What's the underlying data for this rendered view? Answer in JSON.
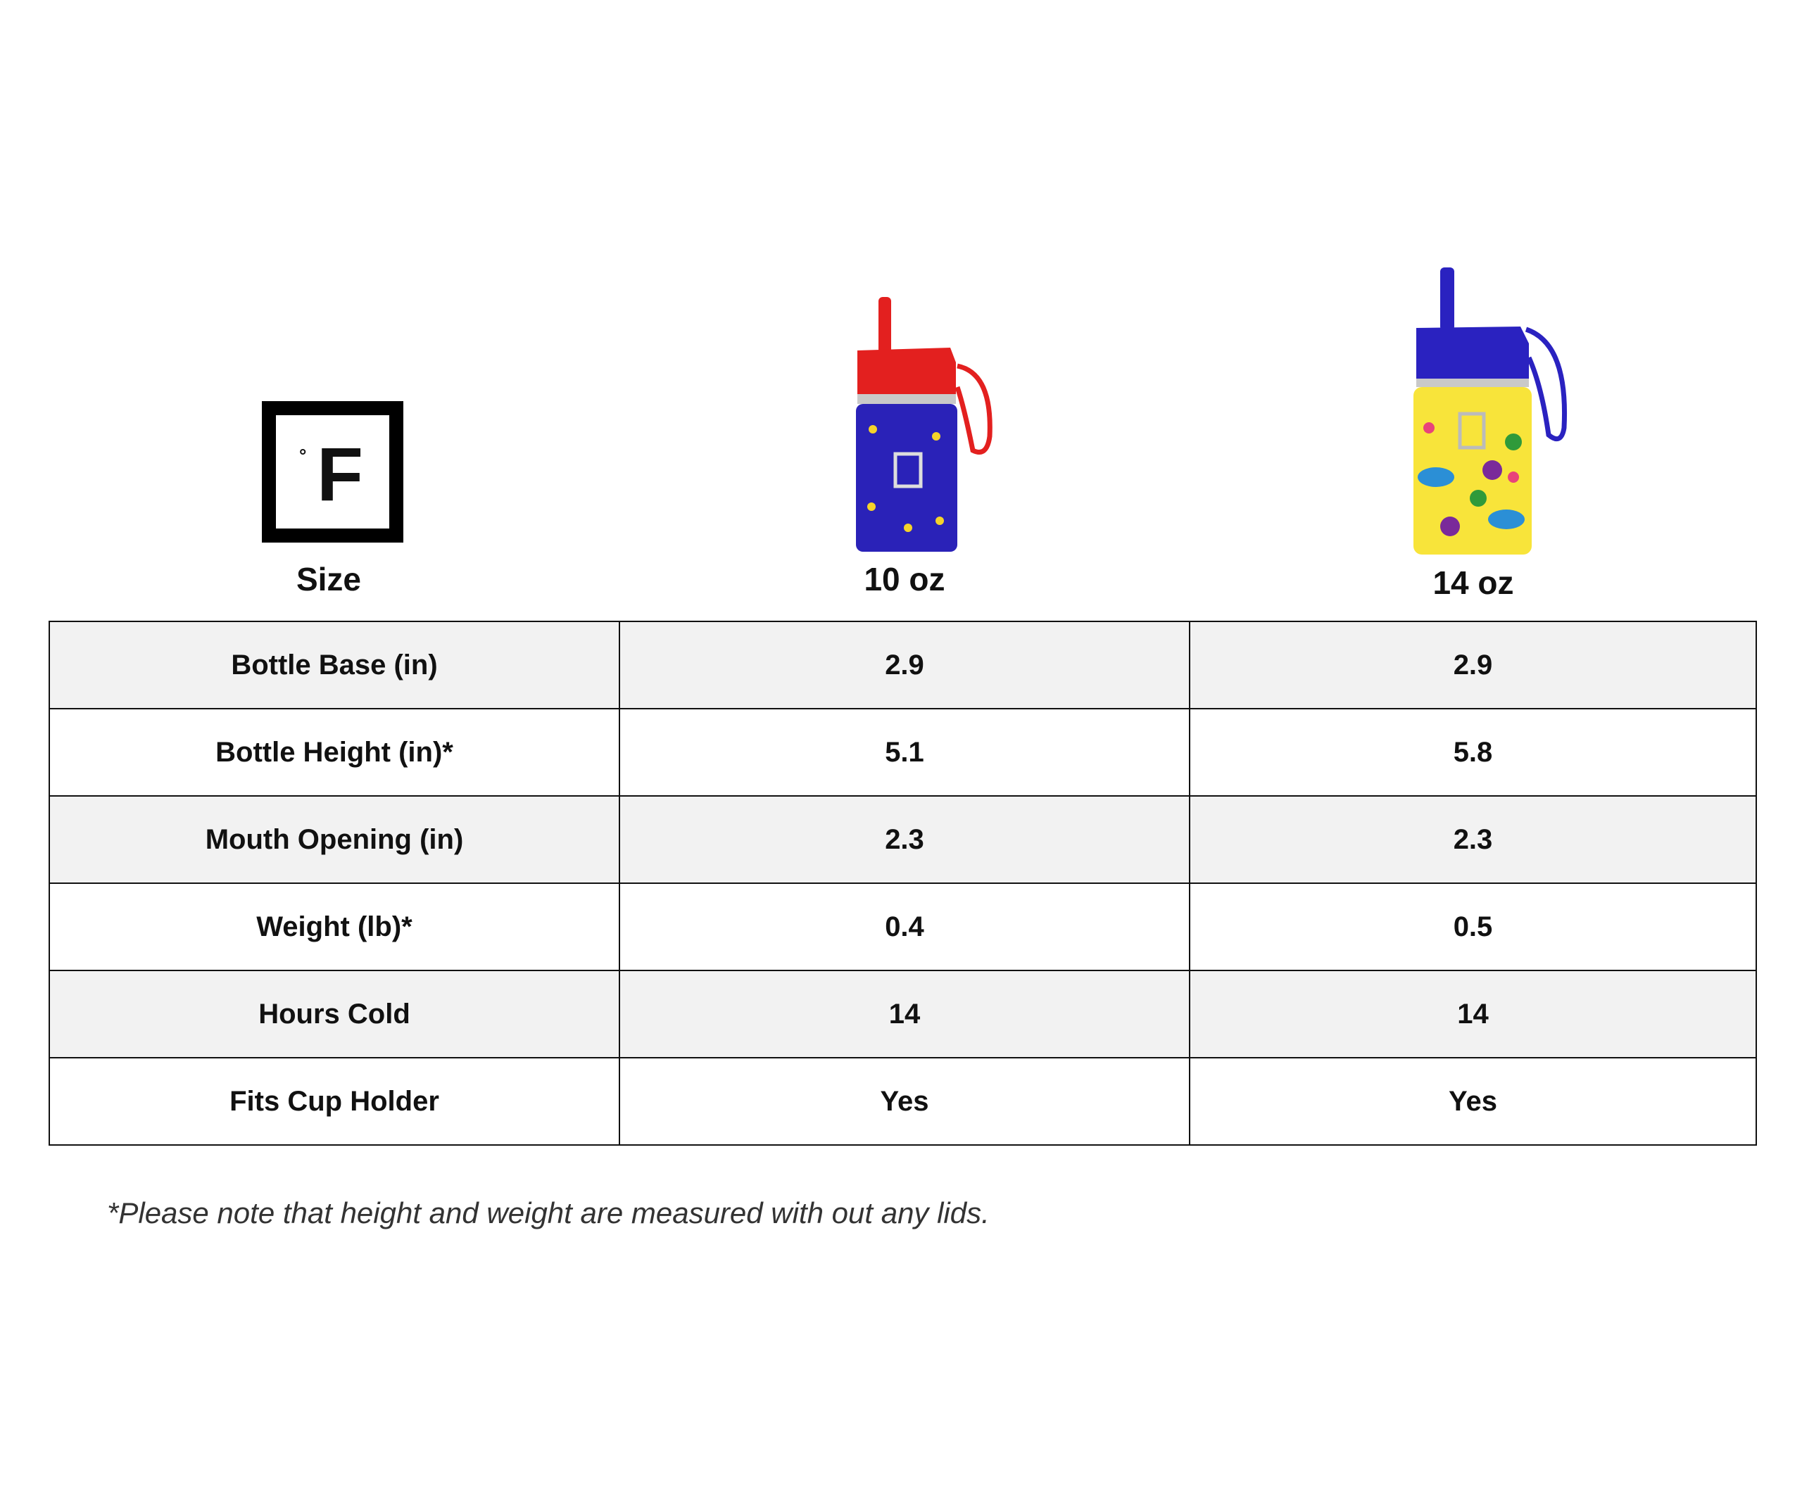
{
  "logo": {
    "degree": "°",
    "letter": "F"
  },
  "header": {
    "label": "Size",
    "products": [
      {
        "size": "10 oz",
        "lid_color": "#e3201f",
        "body_color": "#2a22b8",
        "image": "kids-bottle-10oz-construction-print"
      },
      {
        "size": "14 oz",
        "lid_color": "#2a22c0",
        "body_color": "#f8e43a",
        "image": "kids-bottle-14oz-dinosaur-print"
      }
    ]
  },
  "table": {
    "rows": [
      {
        "label": "Bottle Base (in)",
        "values": [
          "2.9",
          "2.9"
        ]
      },
      {
        "label": "Bottle Height (in)*",
        "values": [
          "5.1",
          "5.8"
        ]
      },
      {
        "label": "Mouth Opening (in)",
        "values": [
          "2.3",
          "2.3"
        ]
      },
      {
        "label": "Weight (lb)*",
        "values": [
          "0.4",
          "0.5"
        ]
      },
      {
        "label": "Hours Cold",
        "values": [
          "14",
          "14"
        ]
      },
      {
        "label": "Fits Cup Holder",
        "values": [
          "Yes",
          "Yes"
        ]
      }
    ]
  },
  "footnote": "*Please note that height and weight are measured with out any lids."
}
